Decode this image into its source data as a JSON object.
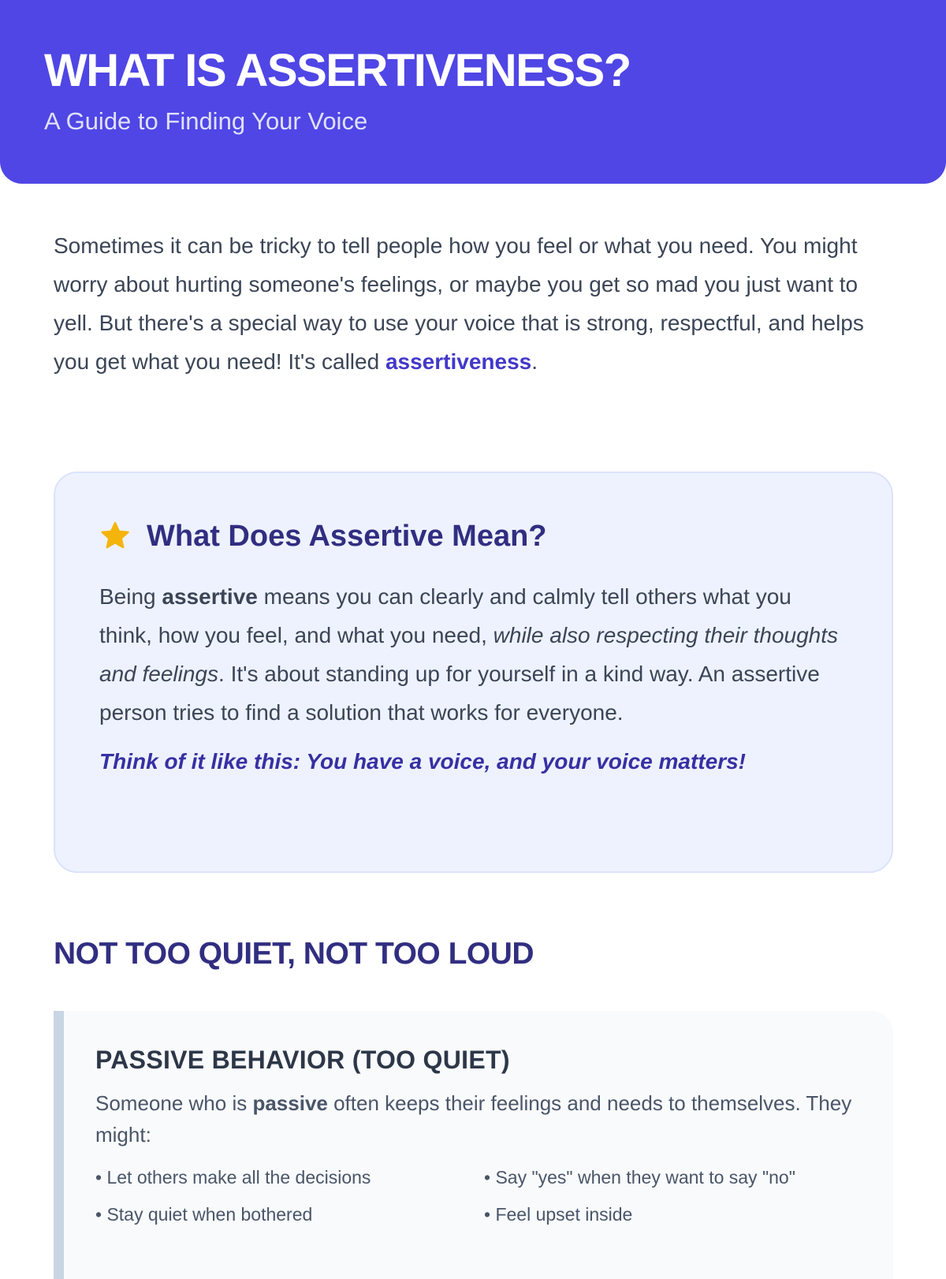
{
  "header": {
    "title": "WHAT IS ASSERTIVENESS?",
    "subtitle": "A Guide to Finding Your Voice",
    "color": "#4f46e5"
  },
  "intro": {
    "text": "Sometimes it can be tricky to tell people how you feel or what you need. You might worry about hurting someone's feelings, or maybe you get so mad you just want to yell. But there's a special way to use your voice that is strong, respectful, and helps you get what you need! It's called ",
    "highlight": "assertiveness",
    "end": "."
  },
  "definition": {
    "icon": "star-icon",
    "title": "What Does Assertive Mean?",
    "p1": "Being ",
    "bold": "assertive",
    "p2": " means you can clearly and calmly tell others what you think, how you feel, and what you need, ",
    "italic": "while also respecting their thoughts and feelings",
    "p3": ". It's about standing up for yourself in a kind way. An assertive person tries to find a solution that works for everyone.",
    "quote": "Think of it like this: You have a voice, and your voice matters!"
  },
  "section": {
    "title": "NOT TOO QUIET, NOT TOO LOUD"
  },
  "passive": {
    "title": "PASSIVE BEHAVIOR (TOO QUIET)",
    "p1": "Someone who is ",
    "bold": "passive",
    "p2": " often keeps their feelings and needs to themselves. They might:",
    "items": [
      "Let others make all the decisions",
      "Say \"yes\" when they want to say \"no\"",
      "Stay quiet when bothered",
      "Feel upset inside"
    ]
  }
}
